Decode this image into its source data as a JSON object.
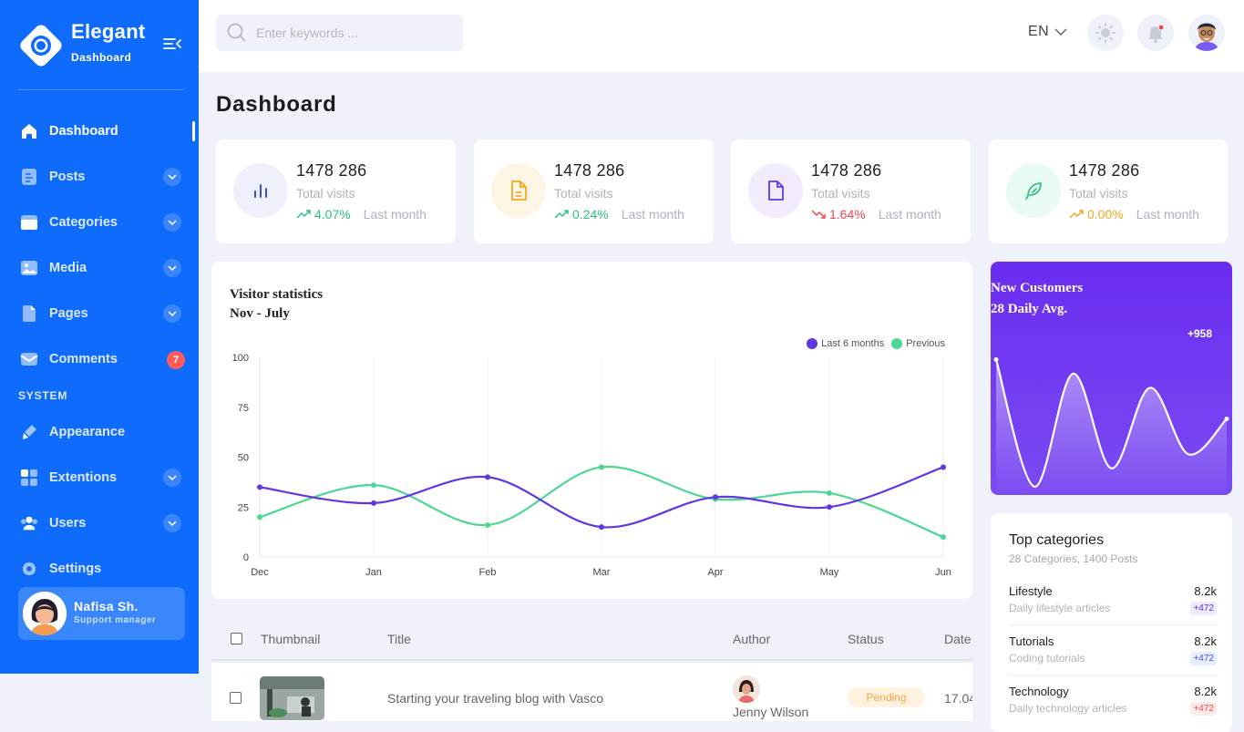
{
  "brand": {
    "name": "Elegant",
    "sub": "Dashboard"
  },
  "nav": {
    "items": [
      {
        "label": "Dashboard",
        "icon": "home-icon"
      },
      {
        "label": "Posts",
        "icon": "posts-icon"
      },
      {
        "label": "Categories",
        "icon": "folder-icon"
      },
      {
        "label": "Media",
        "icon": "image-icon"
      },
      {
        "label": "Pages",
        "icon": "page-icon"
      },
      {
        "label": "Comments",
        "icon": "comment-icon",
        "badge": "7"
      }
    ],
    "system_label": "SYSTEM",
    "system_items": [
      {
        "label": "Appearance",
        "icon": "brush-icon"
      },
      {
        "label": "Extentions",
        "icon": "grid-icon"
      },
      {
        "label": "Users",
        "icon": "users-icon"
      },
      {
        "label": "Settings",
        "icon": "gear-icon"
      }
    ]
  },
  "user": {
    "name": "Nafisa Sh.",
    "role": "Support manager"
  },
  "search": {
    "placeholder": "Enter keywords ..."
  },
  "topbar": {
    "lang": "EN"
  },
  "page": {
    "title": "Dashboard"
  },
  "stats": [
    {
      "value": "1478 286",
      "label": "Total visits",
      "change": "4.07%",
      "period": "Last month",
      "trend": "up",
      "color": "#2ec27e"
    },
    {
      "value": "1478 286",
      "label": "Total visits",
      "change": "0.24%",
      "period": "Last month",
      "trend": "up",
      "color": "#2ec27e"
    },
    {
      "value": "1478 286",
      "label": "Total visits",
      "change": "1.64%",
      "period": "Last month",
      "trend": "down",
      "color": "#f0474a"
    },
    {
      "value": "1478 286",
      "label": "Total visits",
      "change": "0.00%",
      "period": "Last month",
      "trend": "up",
      "color": "#f5a623"
    }
  ],
  "chart_data": {
    "type": "line",
    "title": "Visitor statistics",
    "subtitle": "Nov - July",
    "categories": [
      "Dec",
      "Jan",
      "Feb",
      "Mar",
      "Apr",
      "May",
      "Jun"
    ],
    "series": [
      {
        "name": "Last 6 months",
        "color": "#6236e0",
        "values": [
          35,
          27,
          40,
          15,
          30,
          25,
          45
        ]
      },
      {
        "name": "Previous",
        "color": "#4cd893",
        "values": [
          20,
          36,
          16,
          45,
          29,
          32,
          10
        ]
      }
    ],
    "ylim": [
      0,
      100
    ],
    "yticks": [
      0,
      25,
      50,
      75,
      100
    ],
    "legend": "top-right",
    "grid": "vertical"
  },
  "new_customers": {
    "title": "New Customers",
    "subtitle": "28 Daily Avg.",
    "value": "+958",
    "spark_values": [
      0.92,
      0.02,
      0.82,
      0.15,
      0.72,
      0.25,
      0.5
    ]
  },
  "top_categories": {
    "title": "Top categories",
    "subtitle": "28 Categories, 1400 Posts",
    "items": [
      {
        "name": "Lifestyle",
        "desc": "Daily lifestyle articles",
        "count": "8.2k",
        "badge": "+472",
        "badge_color": "#6236e0",
        "badge_bg": "#efeaff"
      },
      {
        "name": "Tutorials",
        "desc": "Coding tutorials",
        "count": "8.2k",
        "badge": "+472",
        "badge_color": "#3b5bdb",
        "badge_bg": "#e8edff"
      },
      {
        "name": "Technology",
        "desc": "Daily technology articles",
        "count": "8.2k",
        "badge": "+472",
        "badge_color": "#f0474a",
        "badge_bg": "#ffeaea"
      }
    ]
  },
  "table": {
    "headers": {
      "thumbnail": "Thumbnail",
      "title": "Title",
      "author": "Author",
      "status": "Status",
      "date": "Date"
    },
    "rows": [
      {
        "title": "Starting your traveling blog with Vasco",
        "author": "Jenny Wilson",
        "status": "Pending",
        "date": "17.04"
      }
    ]
  }
}
